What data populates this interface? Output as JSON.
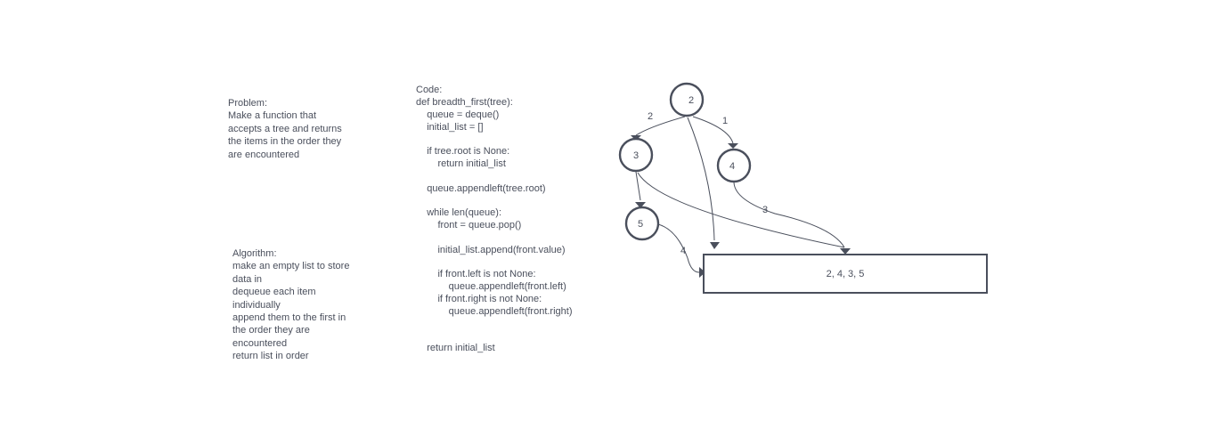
{
  "problem": {
    "text": "Problem:\nMake a function that\naccepts a tree and returns\nthe items in the order they\nare encountered"
  },
  "algorithm": {
    "text": "Algorithm:\nmake an empty list to store\ndata in\ndequeue each item\nindividually\nappend them to the first in\nthe order they are\nencountered\nreturn list in order"
  },
  "code": {
    "lines": [
      "Code:",
      "def breadth_first(tree):",
      "    queue = deque()",
      "    initial_list = []",
      "",
      "    if tree.root is None:",
      "        return initial_list",
      "",
      "    queue.appendleft(tree.root)",
      "",
      "    while len(queue):",
      "        front = queue.pop()",
      "",
      "        initial_list.append(front.value)",
      "",
      "        if front.left is not None:",
      "            queue.appendleft(front.left)",
      "        if front.right is not None:",
      "            queue.appendleft(front.right)",
      "",
      "",
      "    return initial_list"
    ]
  },
  "tree": {
    "nodes": {
      "root": "2",
      "left": "3",
      "right": "4",
      "left_left": "5"
    },
    "edge_labels": {
      "root_to_left": "2",
      "root_to_right": "1",
      "right_to_result": "3",
      "left_left_to_result": "4"
    }
  },
  "result": {
    "text": "2, 4, 3, 5"
  },
  "colors": {
    "stroke": "#4a4f5c",
    "background": "#ffffff"
  }
}
